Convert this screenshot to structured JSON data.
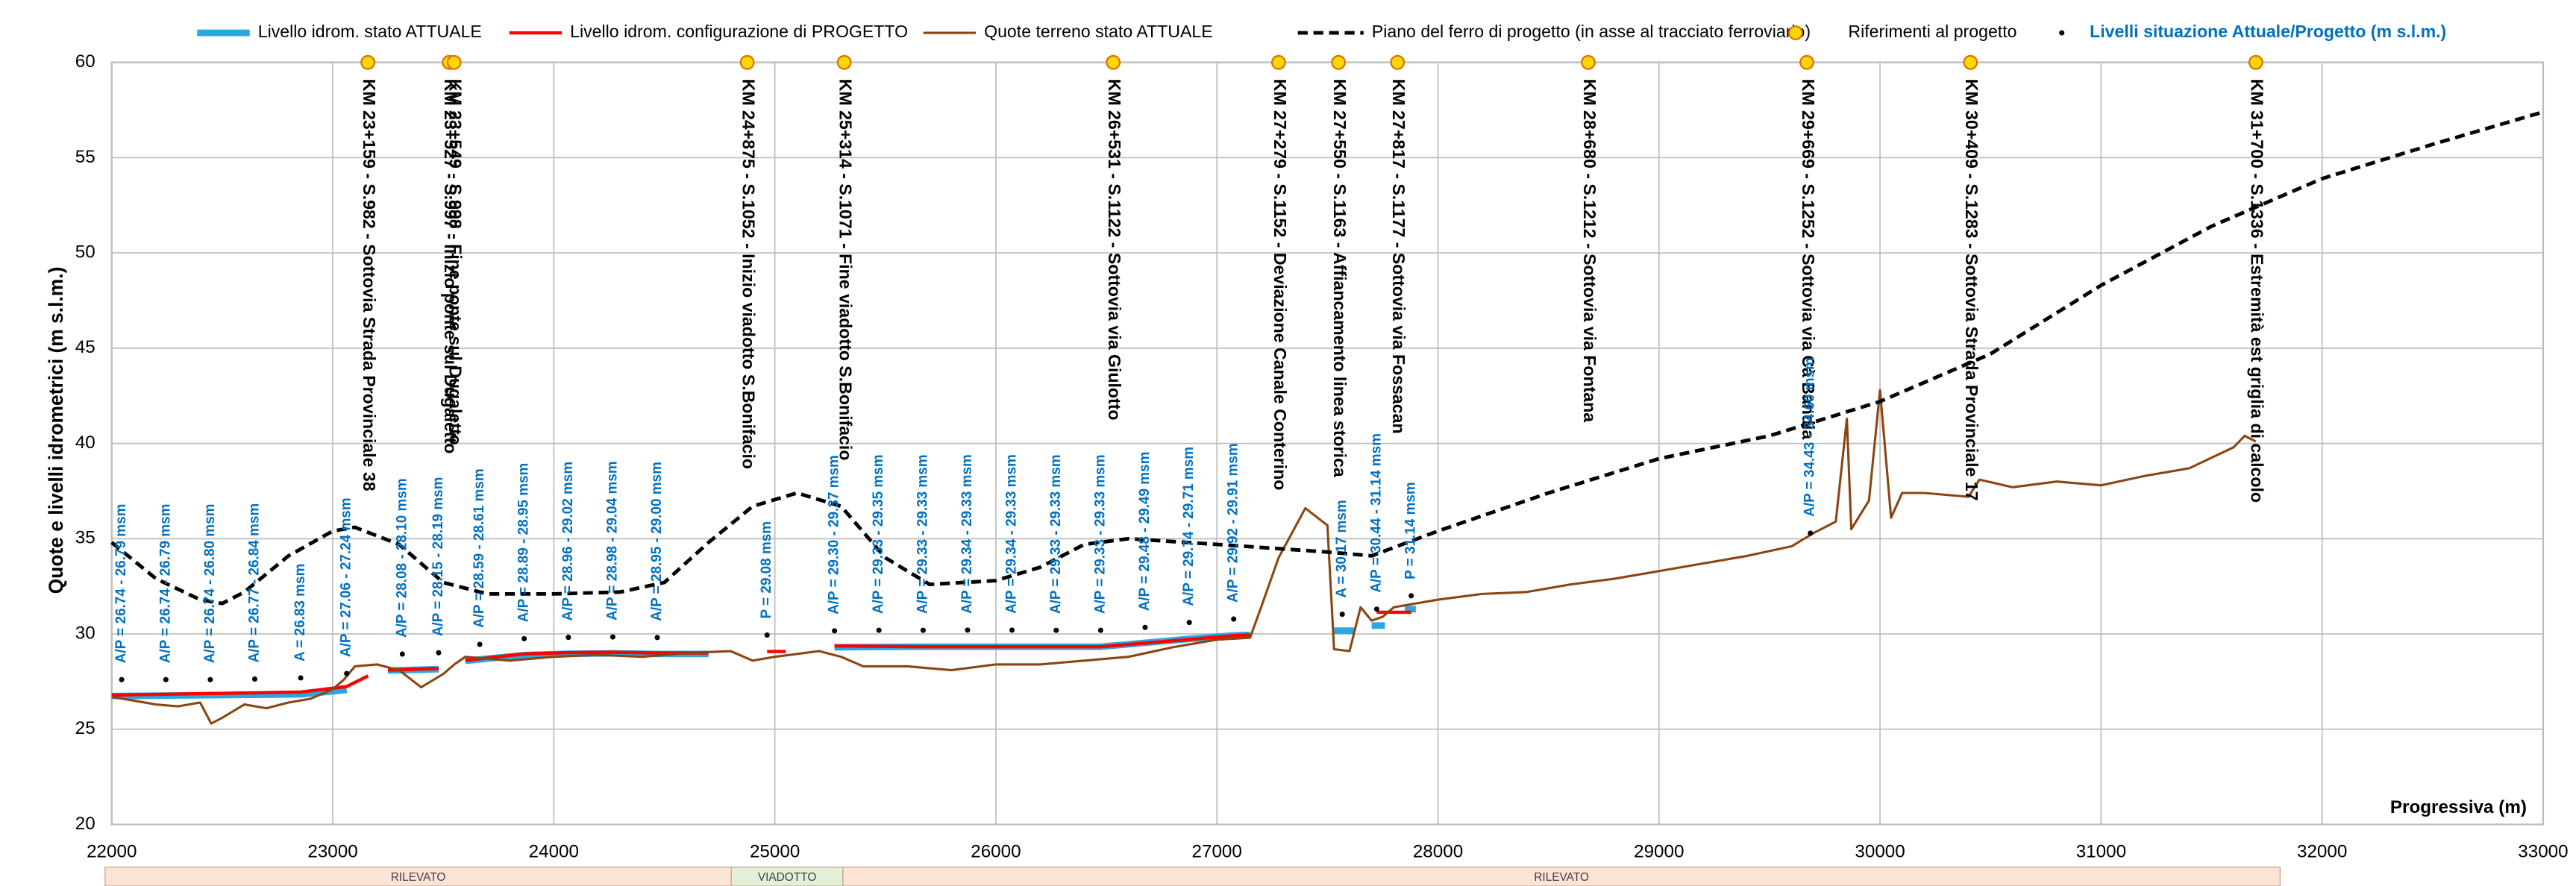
{
  "chart_data": {
    "type": "line",
    "y_label": "Quote e livelli idrometrici (m s.l.m.)",
    "x_label": "Progressiva (m)",
    "xlim": [
      22000,
      33000
    ],
    "xticks": [
      22000,
      23000,
      24000,
      25000,
      26000,
      27000,
      28000,
      29000,
      30000,
      31000,
      32000,
      33000
    ],
    "ylim": [
      20,
      60
    ],
    "yticks": [
      20,
      25,
      30,
      35,
      40,
      45,
      50,
      55,
      60
    ],
    "grid": true,
    "legend": "top",
    "series": [
      {
        "name": "Livello idrom. stato ATTUALE",
        "color": "#29a8e0",
        "mark": "line",
        "x": [
          22000,
          22855,
          23063,
          23160,
          23250,
          23479,
          23540,
          23600,
          23866,
          24066,
          24267,
          24468,
          24700,
          24760,
          25270,
          25671,
          26474,
          26875,
          27076,
          27150,
          27200,
          27530,
          27620,
          27650,
          27700,
          27760,
          27770,
          27850,
          27900
        ],
        "values": [
          26.74,
          26.83,
          27.06,
          null,
          28.08,
          28.15,
          null,
          28.59,
          28.89,
          28.96,
          28.98,
          28.95,
          28.95,
          null,
          29.3,
          29.33,
          29.33,
          29.74,
          29.92,
          29.95,
          null,
          30.17,
          30.17,
          null,
          30.44,
          30.44,
          null,
          31.3,
          31.3
        ]
      },
      {
        "name": "Livello idrom. configurazione di PROGETTO",
        "color": "#ff0000",
        "mark": "line",
        "x": [
          22000,
          22855,
          23063,
          23160,
          23200,
          23250,
          23479,
          23540,
          23600,
          23866,
          24066,
          24267,
          24468,
          24700,
          24760,
          24965,
          25050,
          25100,
          25270,
          25671,
          26474,
          26875,
          27076,
          27150,
          27200,
          27723,
          27879
        ],
        "values": [
          26.79,
          26.95,
          27.24,
          27.8,
          null,
          28.1,
          28.19,
          null,
          28.61,
          28.95,
          29.02,
          29.04,
          29.0,
          29.0,
          null,
          29.08,
          29.08,
          null,
          29.37,
          29.33,
          29.33,
          29.71,
          29.91,
          29.95,
          null,
          31.14,
          31.14
        ]
      },
      {
        "name": "Quote terreno stato ATTUALE",
        "color": "#8b4513",
        "mark": "line",
        "x": [
          22000,
          22100,
          22200,
          22300,
          22400,
          22450,
          22500,
          22600,
          22700,
          22800,
          22900,
          23000,
          23050,
          23100,
          23200,
          23300,
          23400,
          23500,
          23550,
          23600,
          23800,
          24000,
          24200,
          24400,
          24600,
          24800,
          24900,
          25000,
          25200,
          25300,
          25400,
          25600,
          25800,
          26000,
          26200,
          26400,
          26600,
          26800,
          27000,
          27150,
          27200,
          27279,
          27400,
          27500,
          27530,
          27600,
          27650,
          27700,
          27750,
          27800,
          27900,
          28000,
          28200,
          28400,
          28600,
          28800,
          29000,
          29200,
          29400,
          29600,
          29700,
          29800,
          29850,
          29870,
          29950,
          30000,
          30050,
          30100,
          30200,
          30400,
          30450,
          30600,
          30800,
          31000,
          31200,
          31400,
          31600,
          31650,
          31700
        ],
        "values": [
          26.7,
          26.5,
          26.3,
          26.2,
          26.4,
          25.3,
          25.6,
          26.3,
          26.1,
          26.4,
          26.6,
          27.1,
          27.6,
          28.3,
          28.4,
          28.1,
          27.2,
          27.9,
          28.4,
          28.8,
          28.6,
          28.8,
          28.9,
          28.8,
          29.0,
          29.1,
          28.6,
          28.8,
          29.1,
          28.8,
          28.3,
          28.3,
          28.1,
          28.4,
          28.4,
          28.6,
          28.8,
          29.3,
          29.7,
          29.8,
          31.4,
          34.0,
          36.6,
          35.7,
          29.2,
          29.1,
          31.4,
          30.7,
          30.9,
          31.4,
          31.6,
          31.8,
          32.1,
          32.2,
          32.6,
          32.9,
          33.3,
          33.7,
          34.1,
          34.6,
          35.3,
          35.9,
          41.3,
          35.5,
          37.0,
          42.8,
          36.1,
          37.4,
          37.4,
          37.2,
          38.1,
          37.7,
          38.0,
          37.8,
          38.3,
          38.7,
          39.8,
          40.4,
          40.1
        ]
      },
      {
        "name": "Piano del ferro di progetto (in asse al tracciato ferroviario)",
        "color": "#000000",
        "mark": "dashed",
        "x": [
          22000,
          22200,
          22400,
          22500,
          22600,
          22800,
          23000,
          23100,
          23300,
          23500,
          23700,
          24000,
          24300,
          24500,
          24700,
          24900,
          25100,
          25300,
          25500,
          25700,
          26000,
          26200,
          26400,
          26600,
          27000,
          27500,
          27700,
          28000,
          28500,
          29000,
          29500,
          30000,
          30500,
          31000,
          31500,
          32000,
          32500,
          33000
        ],
        "values": [
          34.8,
          32.9,
          31.8,
          31.6,
          32.2,
          34.1,
          35.4,
          35.6,
          34.7,
          32.7,
          32.1,
          32.1,
          32.2,
          32.7,
          34.8,
          36.7,
          37.4,
          36.7,
          34.0,
          32.6,
          32.8,
          33.5,
          34.7,
          35.0,
          34.7,
          34.3,
          34.1,
          35.4,
          37.4,
          39.2,
          40.4,
          42.2,
          44.7,
          48.3,
          51.4,
          53.9,
          55.7,
          57.4
        ]
      },
      {
        "name": "Riferimenti al progetto",
        "color": "#ffd700",
        "mark": "circle",
        "x": [
          23159,
          23527,
          23549,
          24875,
          25314,
          26531,
          27279,
          27550,
          27817,
          28680,
          29669,
          30409,
          31700
        ],
        "values": [
          60,
          60,
          60,
          60,
          60,
          60,
          60,
          60,
          60,
          60,
          60,
          60,
          60
        ],
        "labels": [
          "KM 23+159 - S.982 - Sottovia Strada Provinciale 38",
          "KM 23+527 - S.997 - Inizio ponte sul Dugaletto",
          "KM 23+549 - S.998 - Fine ponte sul Dugaletto",
          "KM 24+875 - S.1052 - Inizio viadotto S.Bonifacio",
          "KM 25+314 - S.1071 - Fine viadotto S.Bonifacio",
          "KM 26+531 - S.1122 - Sottovia via Giulotto",
          "KM 27+279 - S.1152 - Deviazione Canale Conterino",
          "KM 27+550 - S.1163 - Affiancamento linea storica",
          "KM 27+817 - S.1177 - Sottovia via Fossacan",
          "KM 28+680 - S.1212 - Sottovia via Fontana",
          "KM 29+669 - S.1252 - Sottovia via Cà Bandia",
          "KM 30+409 - S.1283 - Sottovia Strada Provinciale 17",
          "KM 31+700 - S.1336 - Estremità est griglia di calcolo"
        ]
      },
      {
        "name": "Livelli situazione Attuale/Progetto (m s.l.m.)",
        "color": "#000000",
        "mark": "dot",
        "x": [
          22045,
          22245,
          22446,
          22647,
          22855,
          23063,
          23315,
          23479,
          23665,
          23866,
          24066,
          24267,
          24468,
          24965,
          25270,
          25471,
          25671,
          25872,
          26073,
          26273,
          26474,
          26675,
          26875,
          27076,
          27567,
          27723,
          27879,
          29685
        ],
        "values": [
          26.74,
          26.74,
          26.74,
          26.77,
          26.83,
          27.06,
          28.08,
          28.15,
          28.59,
          28.89,
          28.96,
          28.98,
          28.95,
          29.08,
          29.3,
          29.33,
          29.33,
          29.34,
          29.34,
          29.33,
          29.33,
          29.48,
          29.74,
          29.92,
          30.17,
          30.44,
          31.14,
          34.43
        ],
        "value_labels": [
          "A/P = 26.74 - 26.79 msm",
          "A/P = 26.74 - 26.79 msm",
          "A/P = 26.74 - 26.80 msm",
          "A/P = 26.77 - 26.84 msm",
          "A = 26.83 msm",
          "A/P = 27.06 - 27.24 msm",
          "A/P = 28.08 - 28.10 msm",
          "A/P = 28.15 - 28.19 msm",
          "A/P = 28.59 - 28.61 msm",
          "A/P = 28.89 - 28.95 msm",
          "A/P = 28.96 - 29.02 msm",
          "A/P = 28.98 - 29.04 msm",
          "A/P = 28.95 - 29.00 msm",
          "P = 29.08 msm",
          "A/P = 29.30 - 29.37 msm",
          "A/P = 29.33 - 29.35 msm",
          "A/P = 29.33 - 29.33 msm",
          "A/P = 29.34 - 29.33 msm",
          "A/P = 29.34 - 29.33 msm",
          "A/P = 29.33 - 29.33 msm",
          "A/P = 29.33 - 29.33 msm",
          "A/P = 29.48 - 29.49 msm",
          "A/P = 29.74 - 29.71 msm",
          "A/P = 29.92 - 29.91 msm",
          "A = 30.17 msm",
          "A/P = 30.44 - 31.14 msm",
          "P = 31.14 msm",
          "A/P = 34.43 - 34.60 msm"
        ]
      }
    ],
    "bands": [
      {
        "label": "RILEVATO",
        "range": [
          21970,
          24803
        ],
        "color": "#fbe3d6"
      },
      {
        "label": "VIADOTTO",
        "range": [
          24803,
          25308
        ],
        "color": "#e2f0d9"
      },
      {
        "label": "RILEVATO",
        "range": [
          25308,
          31810
        ],
        "color": "#fbe3d6"
      }
    ]
  }
}
